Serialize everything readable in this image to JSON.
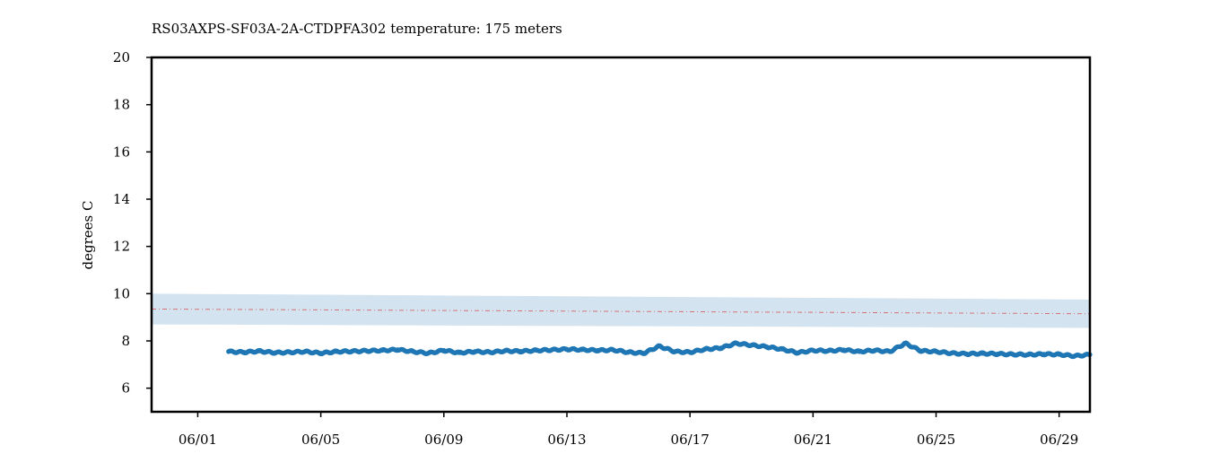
{
  "chart_data": {
    "type": "scatter",
    "title": "RS03AXPS-SF03A-2A-CTDPFA302 temperature: 175 meters",
    "xlabel": "",
    "ylabel": "degrees C",
    "xlim": [
      "2021-05-30T12:00",
      "2021-06-30T00:00"
    ],
    "ylim": [
      5,
      20
    ],
    "x_ticks": [
      "06/01",
      "06/05",
      "06/09",
      "06/13",
      "06/17",
      "06/21",
      "06/25",
      "06/29"
    ],
    "x_tick_dates": [
      "2021-06-01",
      "2021-06-05",
      "2021-06-09",
      "2021-06-13",
      "2021-06-17",
      "2021-06-21",
      "2021-06-25",
      "2021-06-29"
    ],
    "y_ticks": [
      6,
      8,
      10,
      12,
      14,
      16,
      18,
      20
    ],
    "grid": false,
    "legend": "none",
    "colors": {
      "points": "#1f77b4",
      "band": "#d3e3ef",
      "mean_line": "#d62728"
    },
    "climatology_band": {
      "x": [
        "2021-05-30T12:00",
        "2021-06-30T00:00"
      ],
      "lower": [
        8.7,
        8.55
      ],
      "upper": [
        10.0,
        9.75
      ],
      "mean": [
        9.35,
        9.15
      ]
    },
    "series": [
      {
        "x": [
          "2021-06-02",
          "2021-06-02T12:00",
          "2021-06-03",
          "2021-06-03T12:00",
          "2021-06-04",
          "2021-06-04T12:00",
          "2021-06-05",
          "2021-06-05T12:00",
          "2021-06-06",
          "2021-06-06T12:00",
          "2021-06-07",
          "2021-06-07T12:00",
          "2021-06-08",
          "2021-06-08T12:00",
          "2021-06-09",
          "2021-06-09T12:00",
          "2021-06-10",
          "2021-06-10T12:00",
          "2021-06-11",
          "2021-06-11T12:00",
          "2021-06-12",
          "2021-06-12T12:00",
          "2021-06-13",
          "2021-06-13T12:00",
          "2021-06-14",
          "2021-06-14T12:00",
          "2021-06-15",
          "2021-06-15T12:00",
          "2021-06-16",
          "2021-06-16T12:00",
          "2021-06-17",
          "2021-06-17T12:00",
          "2021-06-18",
          "2021-06-18T12:00",
          "2021-06-19",
          "2021-06-19T12:00",
          "2021-06-20",
          "2021-06-20T12:00",
          "2021-06-21",
          "2021-06-21T12:00",
          "2021-06-22",
          "2021-06-22T12:00",
          "2021-06-23",
          "2021-06-23T12:00",
          "2021-06-24",
          "2021-06-24T12:00",
          "2021-06-25",
          "2021-06-25T12:00",
          "2021-06-26",
          "2021-06-26T12:00",
          "2021-06-27",
          "2021-06-27T12:00",
          "2021-06-28",
          "2021-06-28T12:00",
          "2021-06-29",
          "2021-06-29T12:00",
          "2021-06-30"
        ],
        "y": [
          7.55,
          7.52,
          7.57,
          7.5,
          7.52,
          7.55,
          7.48,
          7.55,
          7.56,
          7.58,
          7.6,
          7.63,
          7.55,
          7.48,
          7.6,
          7.5,
          7.55,
          7.52,
          7.58,
          7.56,
          7.6,
          7.62,
          7.65,
          7.63,
          7.6,
          7.62,
          7.52,
          7.48,
          7.78,
          7.55,
          7.52,
          7.65,
          7.7,
          7.9,
          7.82,
          7.75,
          7.65,
          7.5,
          7.6,
          7.58,
          7.62,
          7.55,
          7.6,
          7.55,
          7.9,
          7.58,
          7.55,
          7.48,
          7.45,
          7.47,
          7.45,
          7.43,
          7.42,
          7.44,
          7.43,
          7.36,
          7.42
        ]
      }
    ]
  }
}
